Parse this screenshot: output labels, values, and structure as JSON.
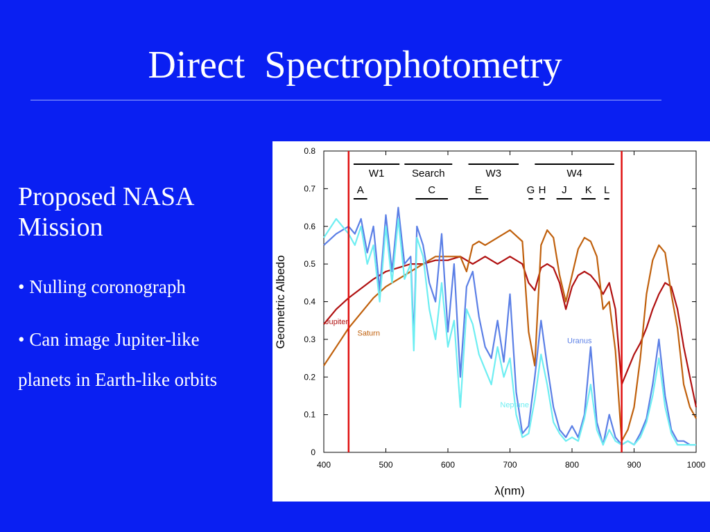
{
  "slide": {
    "title": "Direct  Spectrophotometry",
    "heading": "Proposed NASA Mission",
    "bullets": [
      "• Nulling coronograph",
      "• Can image Jupiter-like",
      "planets in Earth-like orbits"
    ]
  },
  "chart_data": {
    "type": "line",
    "xlabel": "λ(nm)",
    "ylabel": "Geometric Albedo",
    "xlim": [
      400,
      1000
    ],
    "ylim": [
      0,
      0.8
    ],
    "xticks": [
      400,
      500,
      600,
      700,
      800,
      900,
      1000
    ],
    "yticks": [
      0,
      0.1,
      0.2,
      0.3,
      0.4,
      0.5,
      0.6,
      0.7,
      0.8
    ],
    "grid": false,
    "vlines": [
      {
        "x": 440,
        "color": "#e01010"
      },
      {
        "x": 880,
        "color": "#e01010"
      }
    ],
    "bands_top": [
      {
        "label": "W1",
        "x0": 448,
        "x1": 522
      },
      {
        "label": "Search",
        "x0": 530,
        "x1": 607
      },
      {
        "label": "W3",
        "x0": 633,
        "x1": 714
      },
      {
        "label": "W4",
        "x0": 740,
        "x1": 868
      }
    ],
    "bands_bottom": [
      {
        "label": "A",
        "x0": 448,
        "x1": 470
      },
      {
        "label": "C",
        "x0": 548,
        "x1": 600
      },
      {
        "label": "E",
        "x0": 633,
        "x1": 665
      },
      {
        "label": "G",
        "x0": 730,
        "x1": 737
      },
      {
        "label": "H",
        "x0": 748,
        "x1": 756
      },
      {
        "label": "J",
        "x0": 775,
        "x1": 800
      },
      {
        "label": "K",
        "x0": 815,
        "x1": 838
      },
      {
        "label": "L",
        "x0": 852,
        "x1": 860
      }
    ],
    "series": [
      {
        "name": "Jupiter",
        "color": "#b01010",
        "label_at": [
          400,
          0.34
        ],
        "x": [
          400,
          420,
          440,
          460,
          480,
          500,
          520,
          540,
          560,
          580,
          600,
          620,
          640,
          660,
          680,
          700,
          710,
          720,
          730,
          740,
          750,
          760,
          770,
          780,
          790,
          800,
          810,
          820,
          830,
          840,
          850,
          860,
          870,
          880,
          890,
          900,
          910,
          920,
          930,
          940,
          950,
          960,
          970,
          980,
          990,
          1000
        ],
        "y": [
          0.34,
          0.38,
          0.41,
          0.435,
          0.46,
          0.48,
          0.49,
          0.5,
          0.5,
          0.51,
          0.51,
          0.52,
          0.5,
          0.52,
          0.5,
          0.52,
          0.51,
          0.5,
          0.45,
          0.43,
          0.49,
          0.5,
          0.49,
          0.45,
          0.38,
          0.44,
          0.47,
          0.48,
          0.47,
          0.45,
          0.42,
          0.45,
          0.38,
          0.18,
          0.22,
          0.26,
          0.29,
          0.33,
          0.38,
          0.42,
          0.45,
          0.44,
          0.38,
          0.28,
          0.2,
          0.12
        ]
      },
      {
        "name": "Saturn",
        "color": "#c0600c",
        "label_at": [
          452,
          0.31
        ],
        "x": [
          400,
          420,
          440,
          460,
          480,
          500,
          520,
          540,
          560,
          580,
          600,
          620,
          630,
          640,
          650,
          660,
          680,
          700,
          720,
          730,
          740,
          750,
          760,
          770,
          780,
          790,
          800,
          810,
          820,
          830,
          840,
          850,
          860,
          870,
          880,
          890,
          900,
          910,
          920,
          930,
          940,
          950,
          960,
          970,
          980,
          990,
          1000
        ],
        "y": [
          0.23,
          0.28,
          0.33,
          0.37,
          0.41,
          0.44,
          0.46,
          0.48,
          0.5,
          0.52,
          0.52,
          0.52,
          0.48,
          0.55,
          0.56,
          0.55,
          0.57,
          0.59,
          0.56,
          0.32,
          0.23,
          0.55,
          0.59,
          0.57,
          0.47,
          0.4,
          0.47,
          0.54,
          0.57,
          0.56,
          0.52,
          0.38,
          0.4,
          0.27,
          0.03,
          0.06,
          0.12,
          0.25,
          0.42,
          0.51,
          0.55,
          0.53,
          0.42,
          0.33,
          0.18,
          0.12,
          0.09
        ]
      },
      {
        "name": "Uranus",
        "color": "#5b7fe6",
        "label_at": [
          790,
          0.29
        ],
        "x": [
          400,
          420,
          440,
          450,
          460,
          470,
          480,
          490,
          500,
          510,
          520,
          530,
          540,
          545,
          550,
          560,
          570,
          580,
          590,
          600,
          610,
          620,
          630,
          640,
          650,
          660,
          670,
          680,
          690,
          700,
          710,
          720,
          730,
          740,
          750,
          760,
          770,
          780,
          790,
          800,
          810,
          820,
          830,
          840,
          850,
          860,
          870,
          880,
          890,
          900,
          910,
          920,
          930,
          940,
          950,
          960,
          970,
          980,
          990,
          1000
        ],
        "y": [
          0.55,
          0.58,
          0.6,
          0.58,
          0.62,
          0.53,
          0.6,
          0.43,
          0.63,
          0.48,
          0.65,
          0.5,
          0.52,
          0.3,
          0.6,
          0.55,
          0.45,
          0.4,
          0.58,
          0.32,
          0.5,
          0.2,
          0.44,
          0.48,
          0.36,
          0.28,
          0.25,
          0.35,
          0.24,
          0.42,
          0.16,
          0.05,
          0.07,
          0.2,
          0.35,
          0.23,
          0.12,
          0.06,
          0.04,
          0.07,
          0.04,
          0.1,
          0.28,
          0.08,
          0.02,
          0.1,
          0.04,
          0.02,
          0.03,
          0.02,
          0.05,
          0.09,
          0.18,
          0.3,
          0.15,
          0.06,
          0.03,
          0.03,
          0.02,
          0.02
        ]
      },
      {
        "name": "Neptune",
        "color": "#6eeef2",
        "label_at": [
          682,
          0.12
        ],
        "x": [
          400,
          420,
          440,
          450,
          460,
          470,
          480,
          490,
          500,
          510,
          520,
          530,
          540,
          545,
          550,
          560,
          570,
          580,
          590,
          600,
          610,
          620,
          630,
          640,
          650,
          660,
          670,
          680,
          690,
          700,
          710,
          720,
          730,
          740,
          750,
          760,
          770,
          780,
          790,
          800,
          810,
          820,
          830,
          840,
          850,
          860,
          870,
          880,
          890,
          900,
          910,
          920,
          930,
          940,
          950,
          960,
          970,
          980,
          990,
          1000
        ],
        "y": [
          0.57,
          0.62,
          0.58,
          0.55,
          0.6,
          0.5,
          0.55,
          0.4,
          0.6,
          0.45,
          0.62,
          0.46,
          0.5,
          0.27,
          0.57,
          0.52,
          0.38,
          0.3,
          0.45,
          0.28,
          0.35,
          0.12,
          0.38,
          0.34,
          0.26,
          0.22,
          0.18,
          0.28,
          0.2,
          0.25,
          0.1,
          0.04,
          0.05,
          0.14,
          0.26,
          0.18,
          0.08,
          0.05,
          0.03,
          0.04,
          0.03,
          0.09,
          0.18,
          0.06,
          0.02,
          0.06,
          0.03,
          0.02,
          0.03,
          0.02,
          0.04,
          0.08,
          0.15,
          0.25,
          0.12,
          0.05,
          0.02,
          0.02,
          0.02,
          0.02
        ]
      }
    ]
  }
}
